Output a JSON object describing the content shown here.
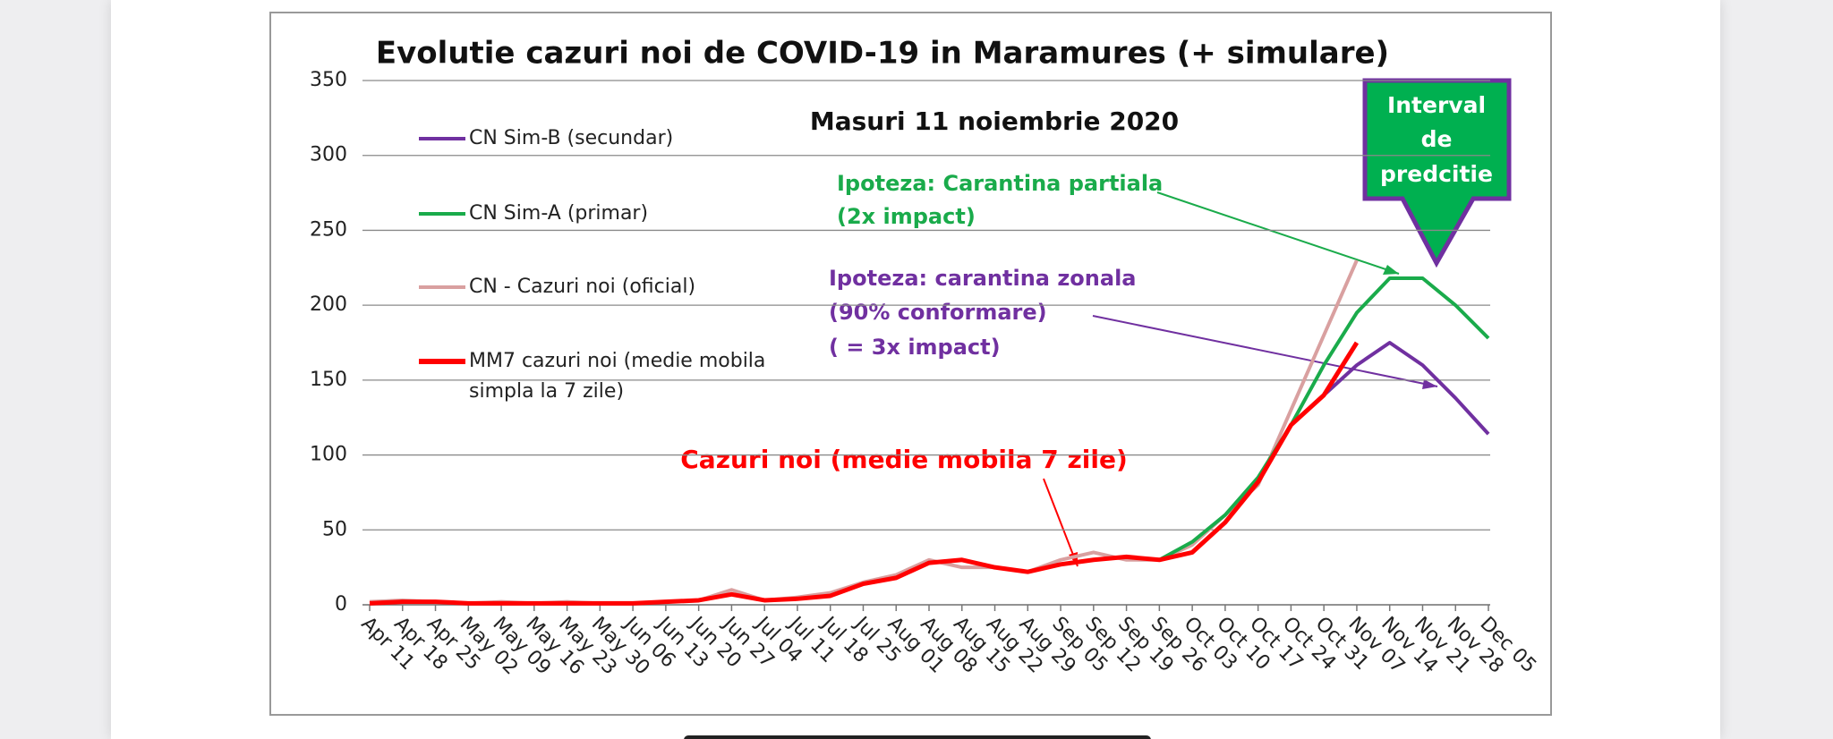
{
  "chart_data": {
    "type": "line",
    "title": "Evolutie cazuri noi de COVID-19 in Maramures (+ simulare)",
    "categories": [
      "Apr 11",
      "Apr 18",
      "Apr 25",
      "May 02",
      "May 09",
      "May 16",
      "May 23",
      "May 30",
      "Jun 06",
      "Jun 13",
      "Jun 20",
      "Jun 27",
      "Jul 04",
      "Jul 11",
      "Jul 18",
      "Jul 25",
      "Aug 01",
      "Aug 08",
      "Aug 15",
      "Aug 22",
      "Aug 29",
      "Sep 05",
      "Sep 12",
      "Sep 19",
      "Sep 26",
      "Oct 03",
      "Oct 10",
      "Oct 17",
      "Oct 24",
      "Oct 31",
      "Nov 07",
      "Nov 14",
      "Nov 21",
      "Nov 28",
      "Dec 05"
    ],
    "series": [
      {
        "name": "CN Sim-B (secundar)",
        "color": "#7030a0",
        "values": [
          null,
          null,
          null,
          null,
          null,
          null,
          null,
          null,
          null,
          null,
          null,
          null,
          null,
          null,
          null,
          null,
          null,
          null,
          null,
          null,
          null,
          null,
          null,
          null,
          null,
          null,
          null,
          null,
          null,
          140,
          160,
          175,
          160,
          138,
          114
        ]
      },
      {
        "name": "CN Sim-A (primar)",
        "color": "#1aab4b",
        "values": [
          null,
          null,
          null,
          null,
          null,
          null,
          null,
          null,
          null,
          null,
          null,
          null,
          null,
          null,
          null,
          null,
          null,
          null,
          null,
          null,
          null,
          null,
          null,
          null,
          30,
          42,
          60,
          85,
          120,
          160,
          195,
          218,
          218,
          200,
          178
        ]
      },
      {
        "name": "CN - Cazuri noi (oficial)",
        "color": "#d9a0a0",
        "values": [
          2,
          3,
          2,
          1,
          2,
          1,
          2,
          1,
          1,
          2,
          3,
          10,
          3,
          5,
          8,
          15,
          20,
          30,
          25,
          25,
          22,
          30,
          35,
          30,
          30,
          40,
          60,
          80,
          130,
          180,
          230,
          null,
          null,
          null,
          null
        ]
      },
      {
        "name": "MM7 cazuri noi (medie mobila simpla la 7 zile)",
        "color": "#ff0000",
        "values": [
          1,
          2,
          2,
          1,
          1,
          1,
          1,
          1,
          1,
          2,
          3,
          7,
          3,
          4,
          6,
          14,
          18,
          28,
          30,
          25,
          22,
          27,
          30,
          32,
          30,
          35,
          55,
          82,
          120,
          140,
          175,
          null,
          null,
          null,
          null
        ]
      }
    ],
    "ylim": [
      0,
      350
    ],
    "yticks": [
      0,
      50,
      100,
      150,
      200,
      250,
      300,
      350
    ],
    "grid": true,
    "annotations": {
      "measures": "Masuri 11 noiembrie 2020",
      "sim_a": [
        "Ipoteza: Carantina partiala",
        "(2x impact)"
      ],
      "sim_b": [
        "Ipoteza: carantina zonala",
        "(90% conformare)",
        "( = 3x impact)"
      ],
      "moving_average": "Cazuri noi (medie mobila 7 zile)",
      "prediction": [
        "Interval",
        "de",
        "predcitie"
      ]
    }
  }
}
